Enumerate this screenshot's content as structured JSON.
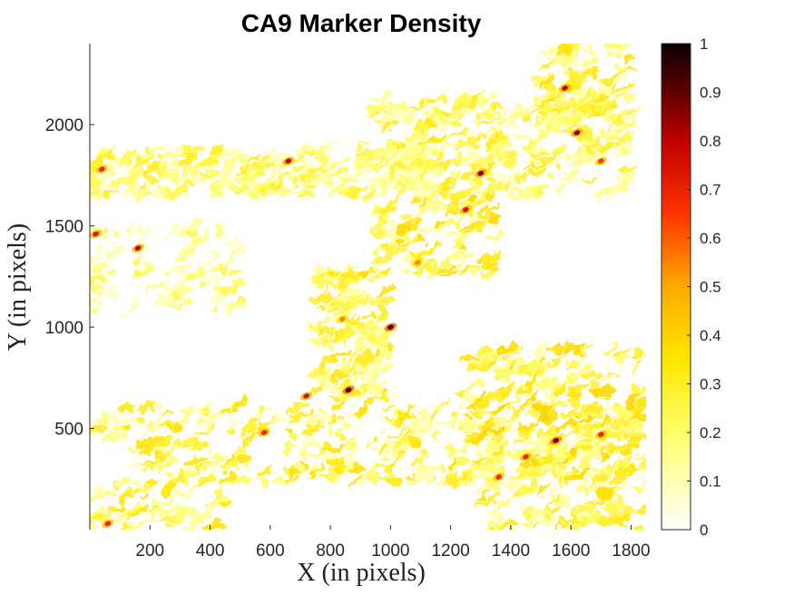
{
  "chart_data": {
    "type": "heatmap",
    "title": "CA9 Marker Density",
    "xlabel": "X (in pixels)",
    "ylabel": "Y (in pixels)",
    "xlim": [
      0,
      1850
    ],
    "ylim": [
      0,
      2400
    ],
    "xticks": [
      200,
      400,
      600,
      800,
      1000,
      1200,
      1400,
      1600,
      1800
    ],
    "yticks": [
      500,
      1000,
      1500,
      2000
    ],
    "colorbar": {
      "ticks": [
        0,
        0.1,
        0.2,
        0.3,
        0.4,
        0.5,
        0.6,
        0.7,
        0.8,
        0.9,
        1
      ],
      "colormap": "hot (reversed)",
      "range": [
        0,
        1
      ]
    },
    "hotspots": [
      {
        "x": 860,
        "y": 690,
        "v": 0.95
      },
      {
        "x": 1000,
        "y": 1000,
        "v": 0.95
      },
      {
        "x": 1250,
        "y": 1580,
        "v": 0.75
      },
      {
        "x": 1300,
        "y": 1760,
        "v": 0.85
      },
      {
        "x": 1550,
        "y": 440,
        "v": 0.9
      },
      {
        "x": 1700,
        "y": 470,
        "v": 0.7
      },
      {
        "x": 1620,
        "y": 1960,
        "v": 0.85
      },
      {
        "x": 1580,
        "y": 2180,
        "v": 0.8
      },
      {
        "x": 660,
        "y": 1820,
        "v": 0.8
      },
      {
        "x": 160,
        "y": 1390,
        "v": 0.8
      },
      {
        "x": 20,
        "y": 1460,
        "v": 0.75
      },
      {
        "x": 40,
        "y": 1780,
        "v": 0.7
      },
      {
        "x": 720,
        "y": 660,
        "v": 0.75
      },
      {
        "x": 580,
        "y": 480,
        "v": 0.7
      },
      {
        "x": 1360,
        "y": 260,
        "v": 0.7
      },
      {
        "x": 1450,
        "y": 360,
        "v": 0.7
      },
      {
        "x": 60,
        "y": 30,
        "v": 0.7
      },
      {
        "x": 1090,
        "y": 1320,
        "v": 0.55
      },
      {
        "x": 840,
        "y": 1040,
        "v": 0.55
      },
      {
        "x": 1700,
        "y": 1820,
        "v": 0.65
      }
    ]
  }
}
